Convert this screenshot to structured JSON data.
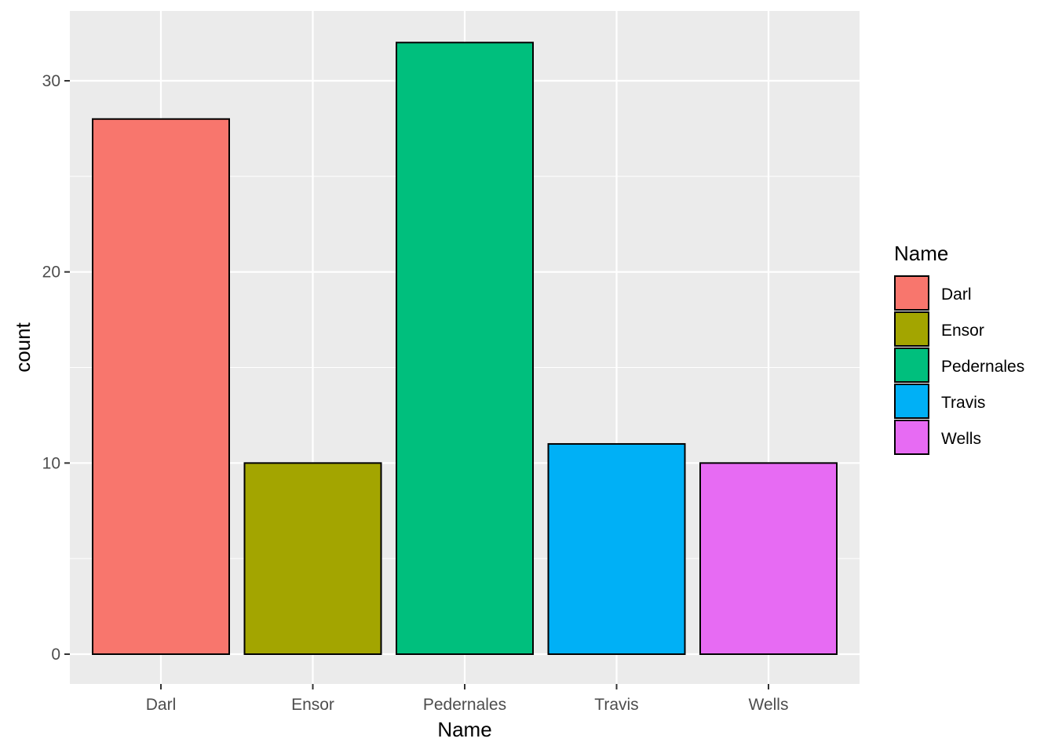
{
  "chart_data": {
    "type": "bar",
    "title": "",
    "xlabel": "Name",
    "ylabel": "count",
    "categories": [
      "Darl",
      "Ensor",
      "Pedernales",
      "Travis",
      "Wells"
    ],
    "values": [
      28,
      10,
      32,
      11,
      10
    ],
    "colors": [
      "#F8766D",
      "#A3A500",
      "#00BF7D",
      "#00B0F6",
      "#E76BF3"
    ],
    "ylim": [
      0,
      33
    ],
    "yticks": [
      0,
      10,
      20,
      30
    ],
    "grid": true,
    "legend": {
      "title": "Name",
      "position": "right",
      "entries": [
        "Darl",
        "Ensor",
        "Pedernales",
        "Travis",
        "Wells"
      ]
    },
    "panel_background": "#EBEBEB",
    "grid_color": "#FFFFFF",
    "bar_outline": "#000000"
  }
}
